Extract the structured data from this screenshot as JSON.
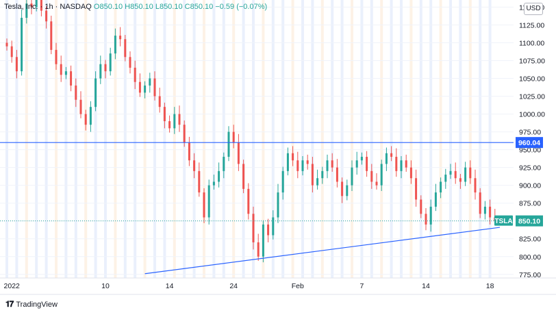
{
  "legend": {
    "symbol": "Tesla, Inc.",
    "interval": "1h",
    "exchange": "NASDAQ",
    "open": "O850.10",
    "high": "H850.10",
    "low": "L850.10",
    "close": "C850.10",
    "change": "−0.59 (−0.07%)"
  },
  "currency": "USD",
  "footer": {
    "brand": "TradingView"
  },
  "colors": {
    "up": "#26a69a",
    "down": "#ef5350",
    "line": "#2962ff",
    "bg_blue": "#e8eefc",
    "bg_orange": "#fdf1e3"
  },
  "chart_data": {
    "type": "candlestick",
    "ylim": [
      770,
      1160
    ],
    "y_ticks": [
      1150,
      1125,
      1100,
      1075,
      1050,
      1025,
      1000,
      975,
      950,
      925,
      900,
      875,
      850,
      825,
      800,
      775
    ],
    "x_ticks": [
      {
        "label": "2022",
        "i": 1
      },
      {
        "label": "10",
        "i": 20
      },
      {
        "label": "14",
        "i": 33
      },
      {
        "label": "24",
        "i": 46
      },
      {
        "label": "Feb",
        "i": 59
      },
      {
        "label": "7",
        "i": 72
      },
      {
        "label": "14",
        "i": 85
      },
      {
        "label": "18",
        "i": 98
      }
    ],
    "closes": [
      1095,
      1080,
      1060,
      1135,
      1155,
      1150,
      1160,
      1145,
      1130,
      1090,
      1070,
      1055,
      1060,
      1040,
      1020,
      1000,
      985,
      1010,
      1050,
      1070,
      1060,
      1085,
      1110,
      1105,
      1080,
      1065,
      1045,
      1030,
      1040,
      1050,
      1025,
      1010,
      990,
      980,
      1000,
      985,
      960,
      935,
      920,
      890,
      855,
      900,
      905,
      920,
      940,
      975,
      960,
      930,
      895,
      860,
      820,
      800,
      845,
      830,
      855,
      890,
      920,
      945,
      935,
      920,
      935,
      930,
      900,
      910,
      920,
      935,
      925,
      905,
      885,
      900,
      925,
      935,
      940,
      920,
      905,
      900,
      930,
      945,
      940,
      920,
      935,
      925,
      910,
      880,
      860,
      845,
      870,
      890,
      905,
      915,
      920,
      910,
      905,
      925,
      910,
      890,
      860,
      870,
      855,
      850
    ],
    "horizontal_line": {
      "value": 960.04,
      "label": "960.04"
    },
    "trendline": {
      "from": [
        28,
        776
      ],
      "to": [
        100,
        841
      ]
    },
    "last_price": {
      "value": 850.1,
      "symbol": "TSLA",
      "label": "850.10"
    }
  }
}
